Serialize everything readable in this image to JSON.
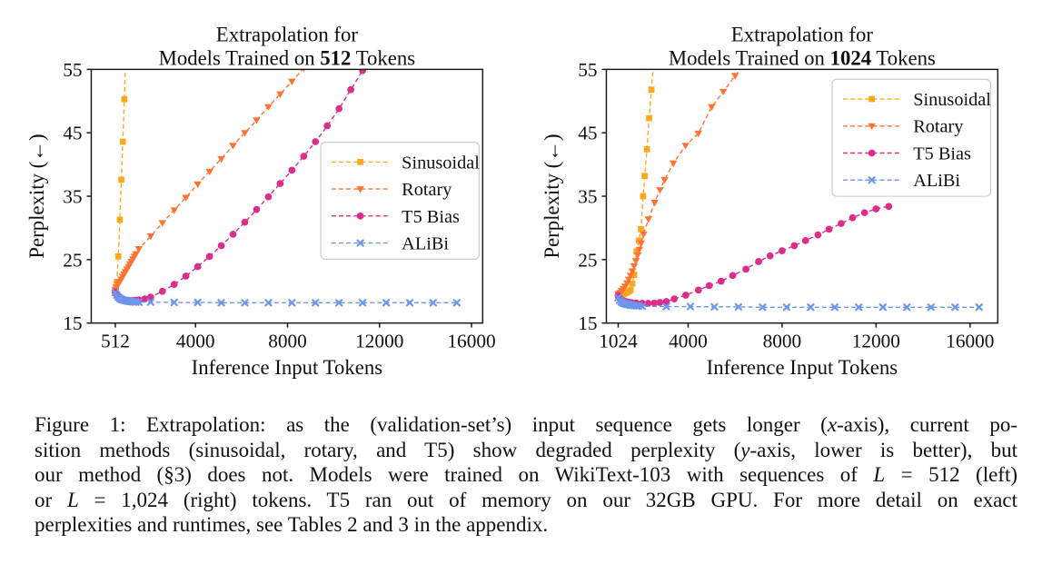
{
  "figure": {
    "caption": {
      "lines": [
        [
          {
            "t": "Figure 1: Extrapolation: as the (validation-set’s) input sequence gets longer (",
            "i": false
          },
          {
            "t": "x",
            "i": true
          },
          {
            "t": "-axis), current po-",
            "i": false
          }
        ],
        [
          {
            "t": "sition methods (sinusoidal, rotary, and T5) show degraded perplexity (",
            "i": false
          },
          {
            "t": "y",
            "i": true
          },
          {
            "t": "-axis, lower is better), but",
            "i": false
          }
        ],
        [
          {
            "t": "our method (§3) does not. Models were trained on WikiText-103 with sequences of ",
            "i": false
          },
          {
            "t": "L",
            "i": true
          },
          {
            "t": " = 512 (left)",
            "i": false
          }
        ],
        [
          {
            "t": "or ",
            "i": false
          },
          {
            "t": "L",
            "i": true
          },
          {
            "t": " = 1,024 (right) tokens. T5 ran out of memory on our 32GB GPU. For more detail on exact",
            "i": false
          }
        ],
        [
          {
            "t": "perplexities and runtimes, see Tables 2 and 3 in the appendix.",
            "i": false
          }
        ]
      ]
    }
  },
  "chart_data": [
    {
      "type": "line",
      "title_line1": "Extrapolation for",
      "title_line2_prefix": "Models Trained on ",
      "title_line2_bold": "512",
      "title_line2_suffix": " Tokens",
      "xlabel": "Inference Input Tokens",
      "ylabel": "Perplexity (←)",
      "xlim": [
        -533,
        16485
      ],
      "ylim": [
        15,
        55
      ],
      "yticks": [
        15,
        25,
        35,
        45,
        55
      ],
      "xticks": [
        {
          "v": 512,
          "label": "512"
        },
        {
          "v": 4000,
          "label": "4000"
        },
        {
          "v": 8000,
          "label": "8000"
        },
        {
          "v": 12000,
          "label": "12000"
        },
        {
          "v": 16000,
          "label": "16000"
        }
      ],
      "grid": false,
      "legend_position": "center-right",
      "legend_box": [
        330,
        146,
        176,
        130
      ],
      "series": [
        {
          "name": "Sinusoidal",
          "color": "#FFA81E",
          "marker": "square",
          "x": [
            512,
            545,
            580,
            645,
            710,
            775,
            840,
            905,
            970
          ],
          "y": [
            20.1,
            20.6,
            21.5,
            25.5,
            31.3,
            37.6,
            43.6,
            50.3,
            57.5
          ]
        },
        {
          "name": "Rotary",
          "color": "#FF7433",
          "marker": "triangle-down",
          "x": [
            512,
            576,
            640,
            704,
            768,
            832,
            896,
            960,
            1024,
            1088,
            1152,
            1216,
            1280,
            1344,
            1408,
            1536,
            2048,
            2560,
            3072,
            3584,
            4096,
            4608,
            5120,
            5632,
            6144,
            6656,
            7168,
            7680,
            8192,
            8704,
            9150
          ],
          "y": [
            20.3,
            20.7,
            21.1,
            21.5,
            21.9,
            22.3,
            22.7,
            23.1,
            23.5,
            23.9,
            24.3,
            24.7,
            25.1,
            25.5,
            25.9,
            26.7,
            28.7,
            30.8,
            32.8,
            34.8,
            36.9,
            38.9,
            40.9,
            43.0,
            45.0,
            47.0,
            49.1,
            51.1,
            53.1,
            55.2,
            57.0
          ]
        },
        {
          "name": "T5 Bias",
          "color": "#DC2C8C",
          "marker": "circle",
          "x": [
            512,
            576,
            640,
            704,
            768,
            832,
            896,
            1024,
            1152,
            1280,
            1408,
            1536,
            1792,
            2048,
            2560,
            3072,
            3584,
            4096,
            4608,
            5120,
            5632,
            6144,
            6656,
            7168,
            7680,
            8192,
            8704,
            9216,
            9728,
            10240,
            10752,
            11264,
            11700
          ],
          "y": [
            19.9,
            19.5,
            19.2,
            19.0,
            18.85,
            18.75,
            18.7,
            18.6,
            18.55,
            18.55,
            18.6,
            18.65,
            18.8,
            19.1,
            20.0,
            21.1,
            22.4,
            23.9,
            25.5,
            27.2,
            29.0,
            30.9,
            32.9,
            34.9,
            37.0,
            39.1,
            41.3,
            43.6,
            46.1,
            48.8,
            51.8,
            54.8,
            57.0
          ]
        },
        {
          "name": "ALiBi",
          "color": "#6D95EB",
          "marker": "x",
          "x": [
            512,
            576,
            640,
            704,
            768,
            832,
            896,
            960,
            1024,
            1088,
            1152,
            1216,
            1280,
            1344,
            1408,
            1536,
            2048,
            3072,
            4096,
            5120,
            6144,
            7168,
            8192,
            9216,
            10240,
            11264,
            12288,
            13312,
            14336,
            15360
          ],
          "y": [
            19.8,
            19.4,
            19.1,
            18.9,
            18.75,
            18.65,
            18.6,
            18.55,
            18.5,
            18.45,
            18.4,
            18.4,
            18.35,
            18.35,
            18.3,
            18.3,
            18.3,
            18.25,
            18.25,
            18.2,
            18.2,
            18.2,
            18.2,
            18.2,
            18.2,
            18.2,
            18.2,
            18.2,
            18.2,
            18.2
          ]
        }
      ]
    },
    {
      "type": "line",
      "title_line1": "Extrapolation for",
      "title_line2_prefix": "Models Trained on ",
      "title_line2_bold": "1024",
      "title_line2_suffix": " Tokens",
      "xlabel": "Inference Input Tokens",
      "ylabel": "Perplexity (←)",
      "xlim": [
        520,
        17180
      ],
      "ylim": [
        15,
        55
      ],
      "yticks": [
        15,
        25,
        35,
        45,
        55
      ],
      "xticks": [
        {
          "v": 1024,
          "label": "1024"
        },
        {
          "v": 4000,
          "label": "4000"
        },
        {
          "v": 8000,
          "label": "8000"
        },
        {
          "v": 12000,
          "label": "12000"
        },
        {
          "v": 16000,
          "label": "16000"
        }
      ],
      "grid": false,
      "legend_position": "top-right",
      "legend_box": [
        326,
        76,
        176,
        130
      ],
      "series": [
        {
          "name": "Sinusoidal",
          "color": "#FFA81E",
          "marker": "square",
          "x": [
            1024,
            1100,
            1175,
            1250,
            1325,
            1400,
            1475,
            1550,
            1625,
            1700,
            1805,
            1900,
            1995,
            2085,
            2150,
            2250,
            2340,
            2440,
            2540
          ],
          "y": [
            19.3,
            19.35,
            19.45,
            19.55,
            19.7,
            19.85,
            20.0,
            20.2,
            21.2,
            22.6,
            26.3,
            28.0,
            29.8,
            35.0,
            38.2,
            42.4,
            47.3,
            51.8,
            56.5
          ]
        },
        {
          "name": "Rotary",
          "color": "#FF7433",
          "marker": "triangle-down",
          "x": [
            1024,
            1100,
            1175,
            1250,
            1325,
            1400,
            1475,
            1550,
            1625,
            1700,
            1775,
            1850,
            1925,
            2000,
            2100,
            2315,
            2575,
            2800,
            3000,
            3370,
            3890,
            4435,
            5005,
            5500,
            6000,
            6420
          ],
          "y": [
            19.6,
            19.8,
            20.1,
            20.4,
            20.8,
            21.3,
            21.9,
            22.5,
            23.2,
            24.0,
            24.8,
            25.7,
            26.6,
            27.6,
            29.0,
            31.4,
            34.0,
            36.0,
            37.6,
            40.2,
            43.0,
            44.9,
            49.1,
            51.5,
            54.0,
            56.0
          ]
        },
        {
          "name": "T5 Bias",
          "color": "#DC2C8C",
          "marker": "circle",
          "x": [
            1024,
            1100,
            1200,
            1300,
            1400,
            1500,
            1600,
            1800,
            2048,
            2300,
            2560,
            2800,
            3072,
            3410,
            3900,
            4440,
            4900,
            5405,
            5900,
            6460,
            7000,
            7490,
            8000,
            8520,
            9000,
            9525,
            10000,
            10515,
            11000,
            11510,
            12000,
            12540
          ],
          "y": [
            19.3,
            18.9,
            18.6,
            18.45,
            18.35,
            18.25,
            18.2,
            18.15,
            18.1,
            18.1,
            18.15,
            18.25,
            18.4,
            18.8,
            19.4,
            20.2,
            20.9,
            21.6,
            22.5,
            23.5,
            24.7,
            25.6,
            26.4,
            27.2,
            28.0,
            28.9,
            29.8,
            30.7,
            31.6,
            32.4,
            33.0,
            33.4
          ]
        },
        {
          "name": "ALiBi",
          "color": "#6D95EB",
          "marker": "x",
          "x": [
            1024,
            1088,
            1152,
            1216,
            1280,
            1344,
            1408,
            1472,
            1536,
            1600,
            1700,
            1800,
            1900,
            2048,
            3072,
            4096,
            5120,
            6144,
            7168,
            8192,
            9216,
            10240,
            11264,
            12288,
            13312,
            14336,
            15360,
            16384
          ],
          "y": [
            19.0,
            18.6,
            18.35,
            18.2,
            18.1,
            18.0,
            17.95,
            17.9,
            17.85,
            17.8,
            17.75,
            17.7,
            17.7,
            17.65,
            17.6,
            17.6,
            17.55,
            17.55,
            17.5,
            17.5,
            17.5,
            17.5,
            17.5,
            17.5,
            17.5,
            17.5,
            17.5,
            17.5
          ]
        }
      ]
    }
  ]
}
